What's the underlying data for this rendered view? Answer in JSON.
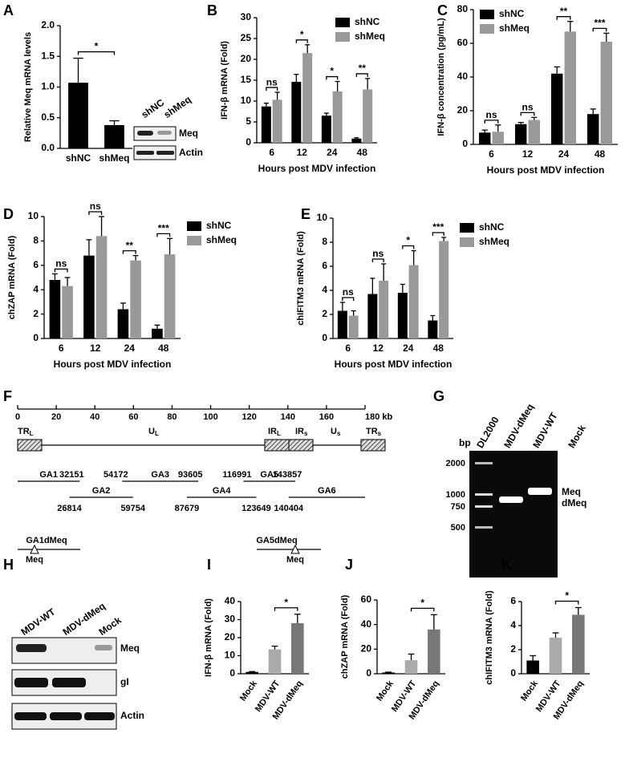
{
  "chart_data": [
    {
      "type": "bar",
      "ylabel": "Relative Meq mRNA levels",
      "categories": [
        "shNC",
        "shMeq"
      ],
      "values": [
        1.07,
        0.38
      ],
      "errors": [
        0.4,
        0.07
      ],
      "colors": [
        "#000000",
        "#000000"
      ],
      "ylim": [
        0,
        2
      ],
      "yticks": [
        {
          "value": 0,
          "label": "0.0"
        },
        0.5,
        {
          "value": 1,
          "label": "1.0"
        },
        1.5,
        {
          "value": 2,
          "label": "2.0"
        }
      ],
      "comparisons": [
        {
          "left": "shNC",
          "right": "shMeq",
          "label": "*"
        }
      ]
    },
    {
      "type": "grouped_bar",
      "ylabel": "IFN-β mRNA (Fold)",
      "xlabel": "Hours post MDV infection",
      "categories": [
        "6",
        "12",
        "24",
        "48"
      ],
      "series": [
        {
          "name": "shNC",
          "color": "#000000",
          "values": [
            8.7,
            14.6,
            6.5,
            1.0
          ],
          "errors": [
            0.8,
            1.8,
            0.6,
            0.2
          ]
        },
        {
          "name": "shMeq",
          "color": "#999999",
          "values": [
            10.3,
            21.5,
            12.3,
            12.8
          ],
          "errors": [
            1.8,
            2.0,
            2.4,
            2.6
          ]
        }
      ],
      "ylim": [
        0,
        30
      ],
      "yticks": [
        0,
        5,
        10,
        15,
        20,
        25,
        30
      ],
      "significance": [
        "ns",
        "*",
        "*",
        "**"
      ],
      "legend": "upper right"
    },
    {
      "type": "grouped_bar",
      "ylabel": "IFN-β concentration (pg/mL)",
      "xlabel": "Hours post MDV infection",
      "categories": [
        "6",
        "12",
        "24",
        "48"
      ],
      "series": [
        {
          "name": "shNC",
          "color": "#000000",
          "values": [
            7,
            12,
            42,
            18
          ],
          "errors": [
            1.5,
            1,
            4,
            3
          ]
        },
        {
          "name": "shMeq",
          "color": "#999999",
          "values": [
            7.5,
            14.5,
            67,
            61
          ],
          "errors": [
            4,
            1.5,
            6,
            5
          ]
        }
      ],
      "ylim": [
        0,
        80
      ],
      "yticks": [
        0,
        20,
        40,
        60,
        80
      ],
      "significance": [
        "ns",
        "ns",
        "**",
        "***"
      ],
      "legend": "upper left"
    },
    {
      "type": "grouped_bar",
      "ylabel": "chZAP mRNA (Fold)",
      "xlabel": "Hours post MDV infection",
      "categories": [
        "6",
        "12",
        "24",
        "48"
      ],
      "series": [
        {
          "name": "shNC",
          "color": "#000000",
          "values": [
            4.8,
            6.8,
            2.4,
            0.8
          ],
          "errors": [
            0.5,
            1.3,
            0.5,
            0.3
          ]
        },
        {
          "name": "shMeq",
          "color": "#999999",
          "values": [
            4.3,
            8.4,
            6.4,
            6.9
          ],
          "errors": [
            0.7,
            1.6,
            0.4,
            1.3
          ]
        }
      ],
      "ylim": [
        0,
        10
      ],
      "yticks": [
        0,
        2,
        4,
        6,
        8,
        10
      ],
      "significance": [
        "ns",
        "ns",
        "**",
        "***"
      ],
      "legend": "outside right"
    },
    {
      "type": "grouped_bar",
      "ylabel": "chIFITM3 mRNA (Fold)",
      "xlabel": "Hours post MDV infection",
      "categories": [
        "6",
        "12",
        "24",
        "48"
      ],
      "series": [
        {
          "name": "shNC",
          "color": "#000000",
          "values": [
            2.3,
            3.7,
            3.8,
            1.5
          ],
          "errors": [
            0.7,
            1.3,
            0.7,
            0.4
          ]
        },
        {
          "name": "shMeq",
          "color": "#999999",
          "values": [
            1.9,
            4.8,
            6.1,
            8.1
          ],
          "errors": [
            0.4,
            1.4,
            1.2,
            0.3
          ]
        }
      ],
      "ylim": [
        0,
        10
      ],
      "yticks": [
        0,
        2,
        4,
        6,
        8,
        10
      ],
      "significance": [
        "ns",
        "ns",
        "*",
        "***"
      ],
      "legend": "outside right"
    },
    {
      "type": "bar",
      "ylabel": "IFN-β mRNA (Fold)",
      "categories": [
        "Mock",
        "MDV-WT",
        "MDV-dMeq"
      ],
      "values": [
        1,
        13.5,
        28
      ],
      "errors": [
        0.2,
        1.8,
        5
      ],
      "colors": [
        "#000000",
        "#aaaaaa",
        "#777777"
      ],
      "ylim": [
        0,
        40
      ],
      "yticks": [
        0,
        10,
        20,
        30,
        40
      ],
      "comparisons": [
        {
          "left": "MDV-WT",
          "right": "MDV-dMeq",
          "label": "*"
        }
      ],
      "rotate_xlabels": true
    },
    {
      "type": "bar",
      "ylabel": "chZAP mRNA (Fold)",
      "categories": [
        "Mock",
        "MDV-WT",
        "MDV-dMeq"
      ],
      "values": [
        1,
        11,
        36
      ],
      "errors": [
        0.3,
        5,
        12
      ],
      "colors": [
        "#000000",
        "#aaaaaa",
        "#777777"
      ],
      "ylim": [
        0,
        60
      ],
      "yticks": [
        0,
        20,
        40,
        60
      ],
      "comparisons": [
        {
          "left": "MDV-WT",
          "right": "MDV-dMeq",
          "label": "*"
        }
      ],
      "rotate_xlabels": true
    },
    {
      "type": "bar",
      "ylabel": "chIFITM3 mRNA (Fold)",
      "categories": [
        "Mock",
        "MDV-WT",
        "MDV-dMeq"
      ],
      "values": [
        1.1,
        3.0,
        4.9
      ],
      "errors": [
        0.4,
        0.4,
        0.6
      ],
      "colors": [
        "#000000",
        "#aaaaaa",
        "#777777"
      ],
      "ylim": [
        0,
        6
      ],
      "yticks": [
        0,
        2,
        4,
        6
      ],
      "comparisons": [
        {
          "left": "MDV-WT",
          "right": "MDV-dMeq",
          "label": "*"
        }
      ],
      "rotate_xlabels": true
    }
  ],
  "panels": [
    "A",
    "B",
    "C",
    "D",
    "E",
    "F",
    "G",
    "H",
    "I",
    "J",
    "K"
  ],
  "blot_a": {
    "lanes": [
      "shNC",
      "shMeq"
    ],
    "bands": [
      "Meq",
      "Actin"
    ]
  },
  "genome_map": {
    "xlim": [
      0,
      180
    ],
    "xticks": [
      0,
      20,
      40,
      60,
      80,
      100,
      120,
      140,
      160,
      {
        "value": 180,
        "label": "180 kb"
      }
    ],
    "regions": [
      {
        "main": "TR",
        "sub": "L"
      },
      {
        "main": "U",
        "sub": "L"
      },
      {
        "main": "IR",
        "sub": "L"
      },
      {
        "main": "IR",
        "sub": "s"
      },
      {
        "main": "U",
        "sub": "s"
      },
      {
        "main": "TR",
        "sub": "s"
      }
    ],
    "fragments": [
      {
        "name": "GA1",
        "end": 32151
      },
      {
        "name": "GA2",
        "start": 26814,
        "end": 59754
      },
      {
        "name": "GA3",
        "start": 54172,
        "end": 93605
      },
      {
        "name": "GA4",
        "start": 87679,
        "end": 123649
      },
      {
        "name": "GA5",
        "start": 116991,
        "end": 143857
      },
      {
        "name": "GA6",
        "start": 140404
      }
    ],
    "deletions": [
      {
        "name": "GA1dMeq",
        "site": "Meq"
      },
      {
        "name": "GA5dMeq",
        "site": "Meq"
      }
    ]
  },
  "gel": {
    "unit": "bp",
    "lanes": [
      "DL2000",
      "MDV-dMeq",
      "MDV-WT",
      "Mock"
    ],
    "ladder": [
      2000,
      1000,
      750,
      500
    ],
    "bands": [
      "Meq",
      "dMeq"
    ]
  },
  "blot_h": {
    "lanes": [
      "MDV-WT",
      "MDV-dMeq",
      "Mock"
    ],
    "bands": [
      "Meq",
      "gI",
      "Actin"
    ]
  }
}
